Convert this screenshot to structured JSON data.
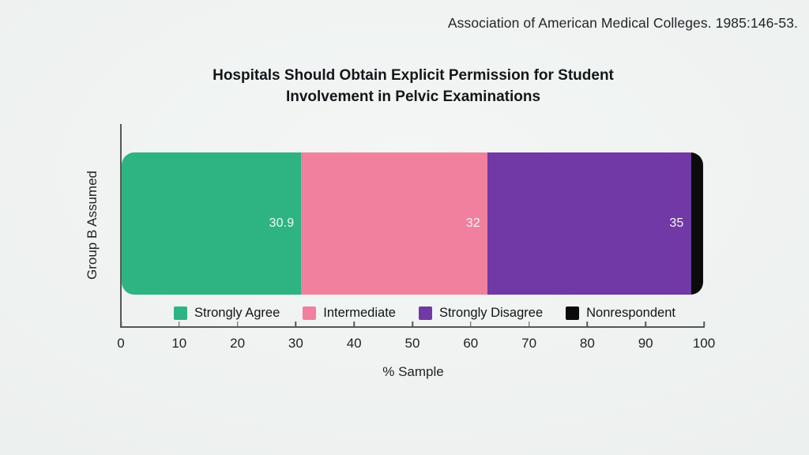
{
  "header": {
    "citation": "Association of American Medical Colleges. 1985:146-53."
  },
  "chart": {
    "title_line1": "Hospitals Should Obtain Explicit Permission for Student",
    "title_line2": "Involvement in Pelvic Examinations",
    "y_axis_label": "Group B Assumed",
    "x_axis_label": "% Sample"
  },
  "chart_data": {
    "type": "bar",
    "orientation": "horizontal",
    "stacked": true,
    "title": "Hospitals Should Obtain Explicit Permission for Student Involvement in Pelvic Examinations",
    "y_category": "Group B Assumed",
    "xlabel": "% Sample",
    "xlim": [
      0,
      100
    ],
    "x_ticks": [
      0,
      10,
      20,
      30,
      40,
      50,
      60,
      70,
      80,
      90,
      100
    ],
    "grid": false,
    "legend_position": "bottom",
    "series": [
      {
        "name": "Strongly Agree",
        "value": 30.9,
        "label": "30.9",
        "color": "#2db482"
      },
      {
        "name": "Intermediate",
        "value": 32,
        "label": "32",
        "color": "#f0809e"
      },
      {
        "name": "Strongly Disagree",
        "value": 35,
        "label": "35",
        "color": "#7039a5"
      },
      {
        "name": "Nonrespondent",
        "value": 2.1,
        "label": "",
        "color": "#0b0b0c"
      }
    ]
  }
}
